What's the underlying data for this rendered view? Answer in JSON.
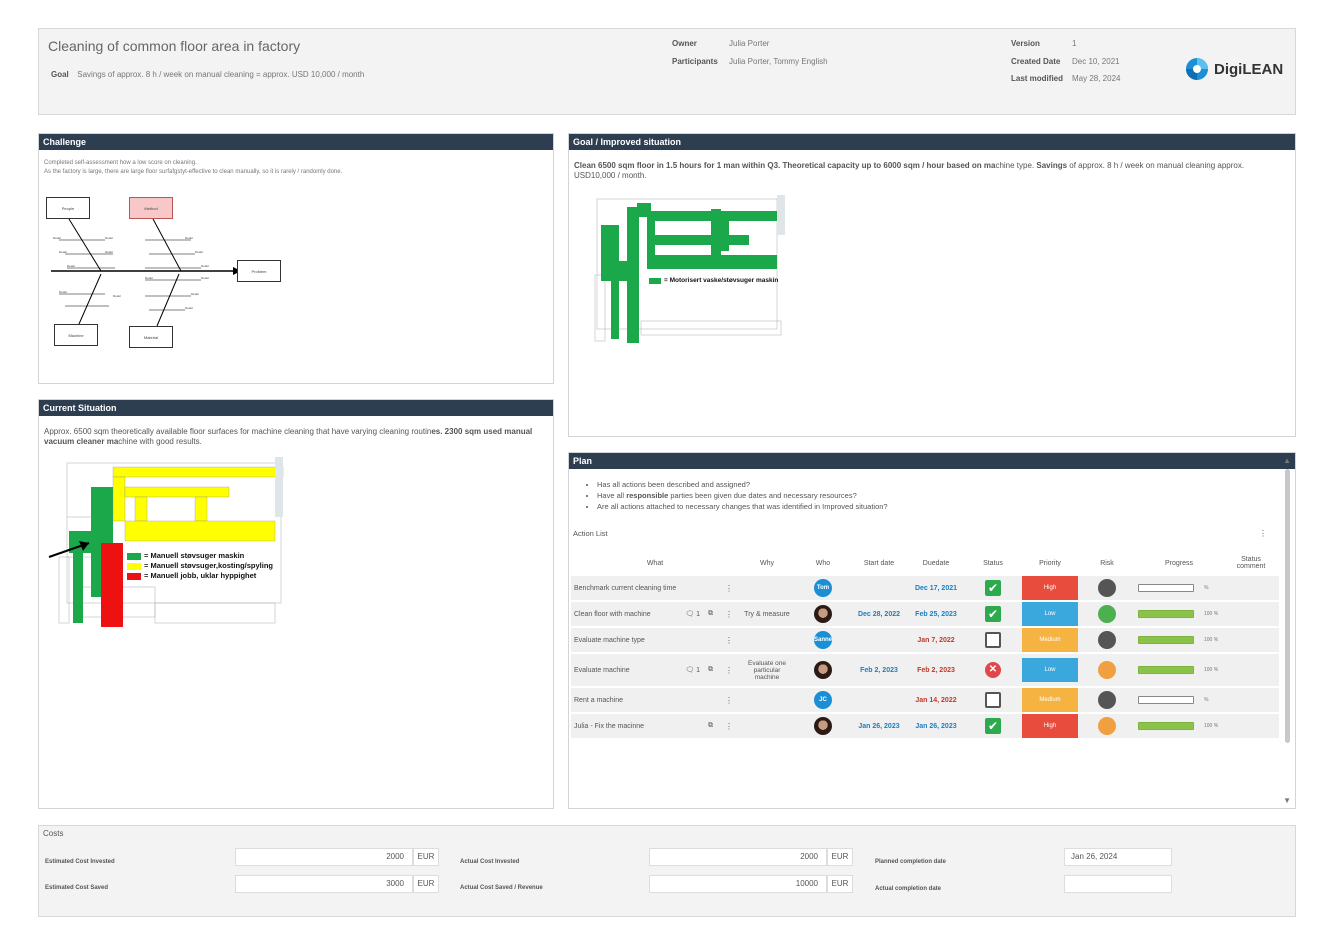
{
  "header": {
    "title": "Cleaning of common floor area in factory",
    "goal_label": "Goal",
    "goal_text": "Savings of approx. 8 h / week on manual cleaning = approx. USD 10,000 / month",
    "owner_label": "Owner",
    "owner": "Julia Porter",
    "participants_label": "Participants",
    "participants": "Julia Porter, Tommy English",
    "version_label": "Version",
    "version": "1",
    "created_label": "Created Date",
    "created": "Dec 10, 2021",
    "modified_label": "Last modified",
    "modified": "May 28, 2024",
    "logo_text": "DigiLEAN",
    "logo_color": "#1a8fd6"
  },
  "challenge": {
    "title": "Challenge",
    "text1": "Completed self-assessment how a low score on cleaning.",
    "text2": "As the factory is large, there are large floor surfafgstyt-effective to clean manually, so it is rarely / randomly done.",
    "fishbone": {
      "people": "People",
      "method": "Method",
      "machine": "Machine",
      "material": "Material",
      "problem": "Problem",
      "detail": "Detail"
    }
  },
  "current": {
    "title": "Current Situation",
    "text_a": "Approx. 6500 sqm theoretically available floor surfaces for machine cleaning that have varying cleaning routin",
    "text_b": "es. 2300 sqm used manual vacuum cleaner ma",
    "text_c": "chine with good results.",
    "legend": [
      "= Manuell støvsuger maskin",
      "= Manuell støvsuger,kosting/spyling",
      "= Manuell jobb, uklar hyppighet"
    ],
    "legend_colors": [
      "#1aa84b",
      "#ffff00",
      "#ee1111"
    ]
  },
  "goal": {
    "title": "Goal / Improved situation",
    "text_b1": "Clean 6500 sqm floor in 1.5 hours for 1 man within Q3. Theoretical capacity up to 6000 sqm / hour based on ma",
    "text_n1": "chine type. ",
    "text_b2": "Savings",
    "text_n2": " of approx. 8 h / week on manual cleaning approx. USD10,000 / month.",
    "legend": "= Motorisert vaske/støvsuger maskin"
  },
  "plan": {
    "title": "Plan",
    "bullets": [
      {
        "pre": "Has all actions been described and assigned?",
        "bold": "",
        "post": ""
      },
      {
        "pre": "Have all ",
        "bold": "responsible",
        "post": " parties been given due dates and necessary resources?"
      },
      {
        "pre": "Are all actions attached to necessary changes that was identified in Improved situation?",
        "bold": "",
        "post": ""
      }
    ],
    "action_list_label": "Action List",
    "columns": [
      "What",
      "Why",
      "Who",
      "Start date",
      "Duedate",
      "Status",
      "Priority",
      "Risk",
      "Progress",
      "Status comment"
    ],
    "rows": [
      {
        "what": "Benchmark current cleaning time",
        "comments": "",
        "why": "",
        "who": "Tom",
        "who_type": "initials",
        "start": "",
        "due": "Dec 17, 2021",
        "due_color": "blue",
        "status": "done",
        "priority": "High",
        "risk": "#555555",
        "progress": 0,
        "pct": "%"
      },
      {
        "what": "Clean floor with machine",
        "comments": "1",
        "why": "Try & measure",
        "who": "",
        "who_type": "photo",
        "start": "Dec 28, 2022",
        "due": "Feb 25, 2023",
        "due_color": "blue",
        "status": "done",
        "priority": "Low",
        "risk": "#4caf50",
        "progress": 100,
        "pct": "100 %"
      },
      {
        "what": "Evaluate machine type",
        "comments": "",
        "why": "",
        "who": "Sanne",
        "who_type": "initials",
        "start": "",
        "due": "Jan 7, 2022",
        "due_color": "red",
        "status": "open",
        "priority": "Medium",
        "risk": "#555555",
        "progress": 100,
        "pct": "100 %"
      },
      {
        "what": "Evaluate machine",
        "comments": "1",
        "why": "Evaluate one particular machine",
        "who": "",
        "who_type": "photo",
        "start": "Feb 2, 2023",
        "due": "Feb 2, 2023",
        "due_color": "red",
        "status": "failed",
        "priority": "Low",
        "risk": "#f0a040",
        "progress": 100,
        "pct": "100 %"
      },
      {
        "what": "Rent a machine",
        "comments": "",
        "why": "",
        "who": "JC",
        "who_type": "initials",
        "start": "",
        "due": "Jan 14, 2022",
        "due_color": "red",
        "status": "open",
        "priority": "Medium",
        "risk": "#555555",
        "progress": 0,
        "pct": "%"
      },
      {
        "what": "Julia - Fix the macinne",
        "comments": "",
        "why": "",
        "who": "",
        "who_type": "photo",
        "start": "Jan 26, 2023",
        "due": "Jan 26, 2023",
        "due_color": "blue",
        "status": "done",
        "priority": "High",
        "risk": "#f0a040",
        "progress": 100,
        "pct": "100 %"
      }
    ],
    "priority_colors": {
      "High": "#e74c3c",
      "Low": "#3aa8dc",
      "Medium": "#f5b342"
    }
  },
  "costs": {
    "title": "Costs",
    "est_invested_label": "Estimated Cost Invested",
    "est_invested": "2000",
    "est_saved_label": "Estimated Cost Saved",
    "est_saved": "3000",
    "act_invested_label": "Actual Cost Invested",
    "act_invested": "2000",
    "act_saved_label": "Actual Cost Saved / Revenue",
    "act_saved": "10000",
    "currency": "EUR",
    "planned_label": "Planned completion date",
    "planned": "Jan 26, 2024",
    "actual_label": "Actual completion date",
    "actual": ""
  }
}
